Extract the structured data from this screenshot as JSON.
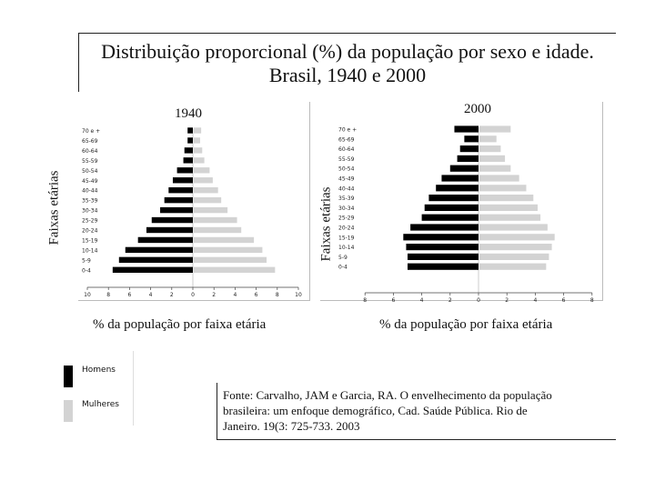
{
  "title": {
    "line1": "Distribuição proporcional (%) da população por sexo e idade.",
    "line2": "Brasil, 1940 e 2000"
  },
  "legend": {
    "men": "Homens",
    "women": "Mulheres",
    "men_color": "#000000",
    "women_color": "#d3d3d3"
  },
  "source": {
    "line1": "Fonte: Carvalho, JAM e Garcia, RA. O envelhecimento da população",
    "line2": "brasileira: um enfoque demográfico, Cad. Saúde Pública. Rio de",
    "line3": "Janeiro. 19(3: 725-733. 2003"
  },
  "chart_data": [
    {
      "type": "bar",
      "subtype": "population-pyramid",
      "title": "1940",
      "ylabel": "Faixas etárias",
      "xlabel": "% da população por faixa etária",
      "categories": [
        "70 e +",
        "65-69",
        "60-64",
        "55-59",
        "50-54",
        "45-49",
        "40-44",
        "35-39",
        "30-34",
        "25-29",
        "20-24",
        "15-19",
        "10-14",
        "5-9",
        "0-4"
      ],
      "xlim": [
        -10,
        10
      ],
      "xticks": [
        -10,
        -8,
        -6,
        -4,
        -2,
        0,
        2,
        4,
        6,
        8,
        10
      ],
      "xtick_labels": [
        "10",
        "8",
        "6",
        "4",
        "2",
        "0",
        "2",
        "4",
        "6",
        "8",
        "10"
      ],
      "series": [
        {
          "name": "Homens",
          "color": "#000000",
          "values": [
            0.5,
            0.5,
            0.8,
            0.9,
            1.5,
            1.9,
            2.3,
            2.7,
            3.1,
            3.9,
            4.4,
            5.2,
            6.4,
            7.0,
            7.6
          ]
        },
        {
          "name": "Mulheres",
          "color": "#d3d3d3",
          "values": [
            0.7,
            0.6,
            0.8,
            1.0,
            1.5,
            1.8,
            2.3,
            2.6,
            3.2,
            4.1,
            4.5,
            5.7,
            6.5,
            6.9,
            7.7
          ]
        }
      ]
    },
    {
      "type": "bar",
      "subtype": "population-pyramid",
      "title": "2000",
      "ylabel": "Faixas etárias",
      "xlabel": "% da população por faixa etária",
      "categories": [
        "70 e +",
        "65-69",
        "60-64",
        "55-59",
        "50-54",
        "45-49",
        "40-44",
        "35-39",
        "30-34",
        "25-29",
        "20-24",
        "15-19",
        "10-14",
        "5-9",
        "0-4"
      ],
      "xlim": [
        -8,
        8
      ],
      "xticks": [
        -8,
        -6,
        -4,
        -2,
        0,
        2,
        4,
        6,
        8
      ],
      "xtick_labels": [
        "8",
        "6",
        "4",
        "2",
        "0",
        "2",
        "4",
        "6",
        "8"
      ],
      "series": [
        {
          "name": "Homens",
          "color": "#000000",
          "values": [
            1.7,
            1.0,
            1.3,
            1.5,
            2.0,
            2.6,
            3.0,
            3.5,
            3.8,
            4.0,
            4.8,
            5.3,
            5.1,
            5.0,
            5.0
          ]
        },
        {
          "name": "Mulheres",
          "color": "#d3d3d3",
          "values": [
            2.2,
            1.2,
            1.5,
            1.8,
            2.2,
            2.8,
            3.3,
            3.8,
            4.1,
            4.3,
            4.8,
            5.3,
            5.1,
            4.9,
            4.7
          ]
        }
      ]
    }
  ]
}
